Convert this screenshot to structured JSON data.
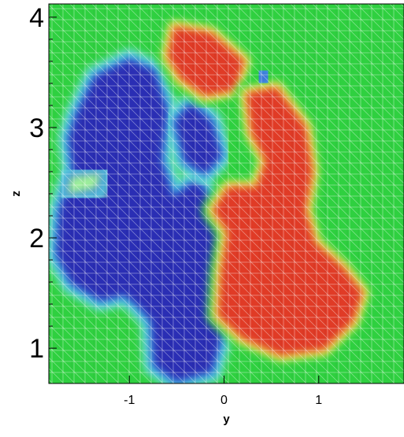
{
  "chart_data": {
    "type": "heatmap",
    "xlabel": "y",
    "ylabel": "z",
    "xlim": [
      -1.85,
      1.9
    ],
    "ylim": [
      0.68,
      4.12
    ],
    "x_ticks": [
      {
        "value": -1,
        "label": "-1"
      },
      {
        "value": 0,
        "label": "0"
      },
      {
        "value": 1,
        "label": "1"
      }
    ],
    "y_ticks": [
      {
        "value": 1,
        "label": "1"
      },
      {
        "value": 2,
        "label": "2"
      },
      {
        "value": 3,
        "label": "3"
      },
      {
        "value": 4,
        "label": "4"
      }
    ],
    "grid": true,
    "colormap": [
      "#2a2fb4",
      "#3b6fd8",
      "#3fb5e8",
      "#6fe0d0",
      "#9ff09a",
      "#2fd040",
      "#f4f060",
      "#f4b040",
      "#e03a28"
    ],
    "colors": {
      "low": "#2a2fb4",
      "background": "#2fd040",
      "high": "#e03a28"
    },
    "regions": [
      {
        "level": 0.0,
        "polygon": [
          [
            -1.55,
            3.1
          ],
          [
            -1.35,
            3.45
          ],
          [
            -1.0,
            3.6
          ],
          [
            -0.75,
            3.5
          ],
          [
            -0.62,
            3.15
          ],
          [
            -0.68,
            2.7
          ],
          [
            -0.55,
            2.35
          ],
          [
            -0.3,
            2.5
          ],
          [
            -0.15,
            2.35
          ],
          [
            -0.05,
            2.0
          ],
          [
            0.0,
            1.55
          ],
          [
            -0.05,
            1.1
          ],
          [
            -0.15,
            0.8
          ],
          [
            -0.5,
            0.72
          ],
          [
            -0.72,
            0.85
          ],
          [
            -0.75,
            1.25
          ],
          [
            -0.9,
            1.4
          ],
          [
            -1.05,
            1.5
          ],
          [
            -1.3,
            1.45
          ],
          [
            -1.6,
            1.6
          ],
          [
            -1.75,
            1.85
          ],
          [
            -1.72,
            2.25
          ],
          [
            -1.58,
            2.6
          ],
          [
            -1.62,
            2.9
          ]
        ]
      },
      {
        "level": 0.0,
        "polygon": [
          [
            -0.5,
            3.05
          ],
          [
            -0.35,
            3.2
          ],
          [
            -0.15,
            3.05
          ],
          [
            -0.05,
            2.75
          ],
          [
            -0.2,
            2.6
          ],
          [
            -0.4,
            2.7
          ]
        ]
      },
      {
        "level": 1.0,
        "polygon": [
          [
            -0.52,
            3.9
          ],
          [
            -0.15,
            3.85
          ],
          [
            0.2,
            3.6
          ],
          [
            0.1,
            3.35
          ],
          [
            -0.2,
            3.3
          ],
          [
            -0.45,
            3.45
          ],
          [
            -0.58,
            3.65
          ]
        ]
      },
      {
        "level": 1.0,
        "polygon": [
          [
            0.25,
            3.3
          ],
          [
            0.55,
            3.35
          ],
          [
            0.85,
            3.0
          ],
          [
            0.92,
            2.6
          ],
          [
            0.85,
            2.25
          ],
          [
            0.95,
            1.95
          ],
          [
            1.25,
            1.72
          ],
          [
            1.45,
            1.5
          ],
          [
            1.35,
            1.25
          ],
          [
            1.05,
            1.0
          ],
          [
            0.6,
            0.95
          ],
          [
            0.2,
            1.1
          ],
          [
            -0.05,
            1.3
          ],
          [
            -0.02,
            1.7
          ],
          [
            0.05,
            2.05
          ],
          [
            -0.1,
            2.25
          ],
          [
            0.05,
            2.45
          ],
          [
            0.35,
            2.45
          ],
          [
            0.45,
            2.7
          ],
          [
            0.3,
            2.95
          ]
        ]
      },
      {
        "level": 0.45,
        "polygon": [
          [
            -1.62,
            2.55
          ],
          [
            -1.3,
            2.58
          ],
          [
            -1.35,
            2.45
          ],
          [
            -1.65,
            2.4
          ]
        ]
      },
      {
        "level": 0.1,
        "polygon": [
          [
            0.38,
            3.5
          ],
          [
            0.45,
            3.5
          ],
          [
            0.45,
            3.42
          ],
          [
            0.38,
            3.42
          ]
        ]
      }
    ]
  }
}
